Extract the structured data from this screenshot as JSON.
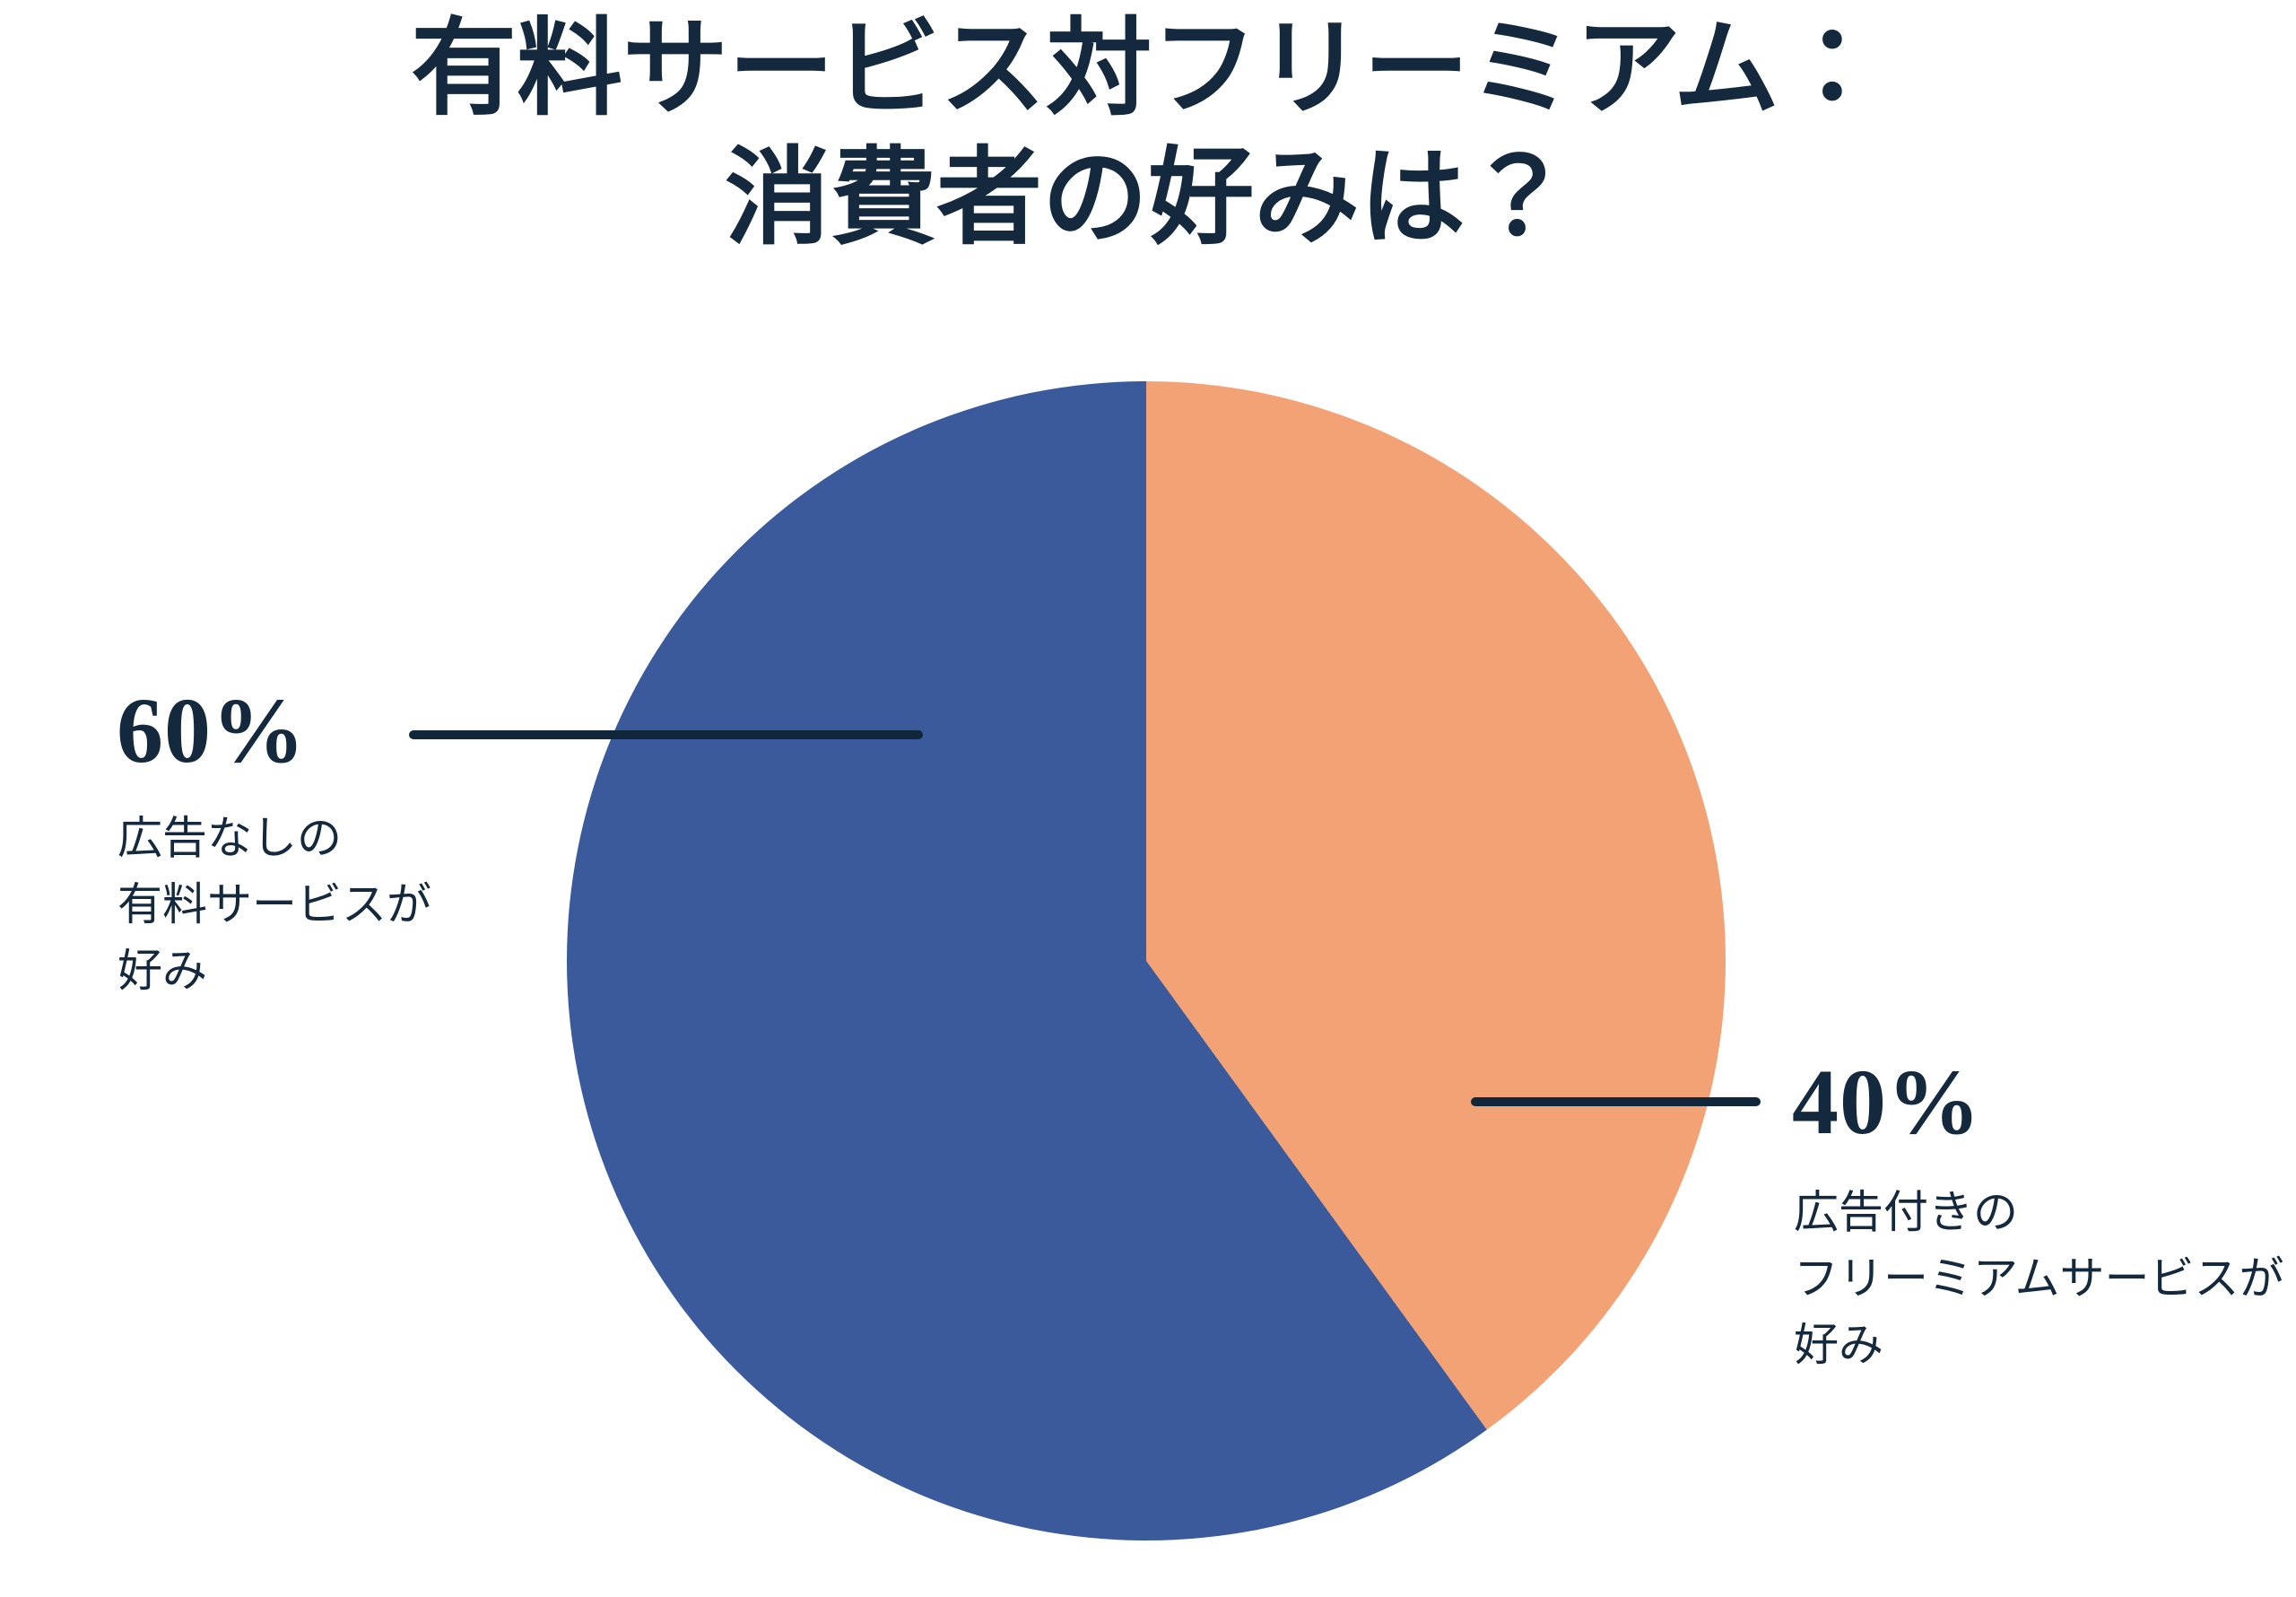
{
  "title": {
    "line1": "有料サービス対フリーミアム：",
    "line2": "消費者の好みは？"
  },
  "chart_data": {
    "type": "pie",
    "title": "有料サービス対フリーミアム：消費者の好みは？",
    "start_angle_deg": 0,
    "direction": "clockwise",
    "slices": [
      {
        "label": "広告付きのフリーミアムサービスが好み",
        "value": 40,
        "unit": "%",
        "color": "#F3A275"
      },
      {
        "label": "広告なしの有料サービスが好み",
        "value": 60,
        "unit": "%",
        "color": "#3A5A9C"
      }
    ],
    "legend_position": "none",
    "data_labels": [
      "60%",
      "40%"
    ]
  },
  "annotations": {
    "left": {
      "percent": "60%",
      "caption_lines": [
        "広告なしの",
        "有料サービスが",
        "好み"
      ]
    },
    "right": {
      "percent": "40%",
      "caption_lines": [
        "広告付きの",
        "フリーミアムサービスが",
        "好み"
      ]
    }
  },
  "colors": {
    "background": "#FFFFFF",
    "text": "#14293E",
    "leader_line": "#10263A",
    "slice_freemium": "#F3A275",
    "slice_paid": "#3A5A9C"
  }
}
